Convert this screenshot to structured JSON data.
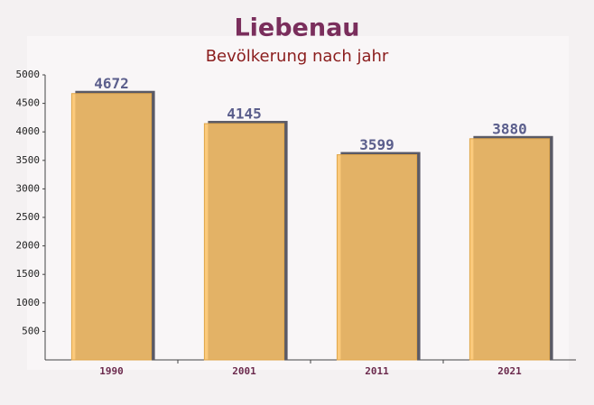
{
  "chart_data": {
    "type": "bar",
    "title": "Liebenau",
    "subtitle": "Bevölkerung nach jahr",
    "categories": [
      "1990",
      "2001",
      "2011",
      "2021"
    ],
    "values": [
      4672,
      4145,
      3599,
      3880
    ],
    "color": "#fbc266",
    "ylim": [
      0,
      5000
    ],
    "yticks": [
      500,
      1000,
      1500,
      2000,
      2500,
      3000,
      3500,
      4000,
      4500,
      5000
    ]
  }
}
